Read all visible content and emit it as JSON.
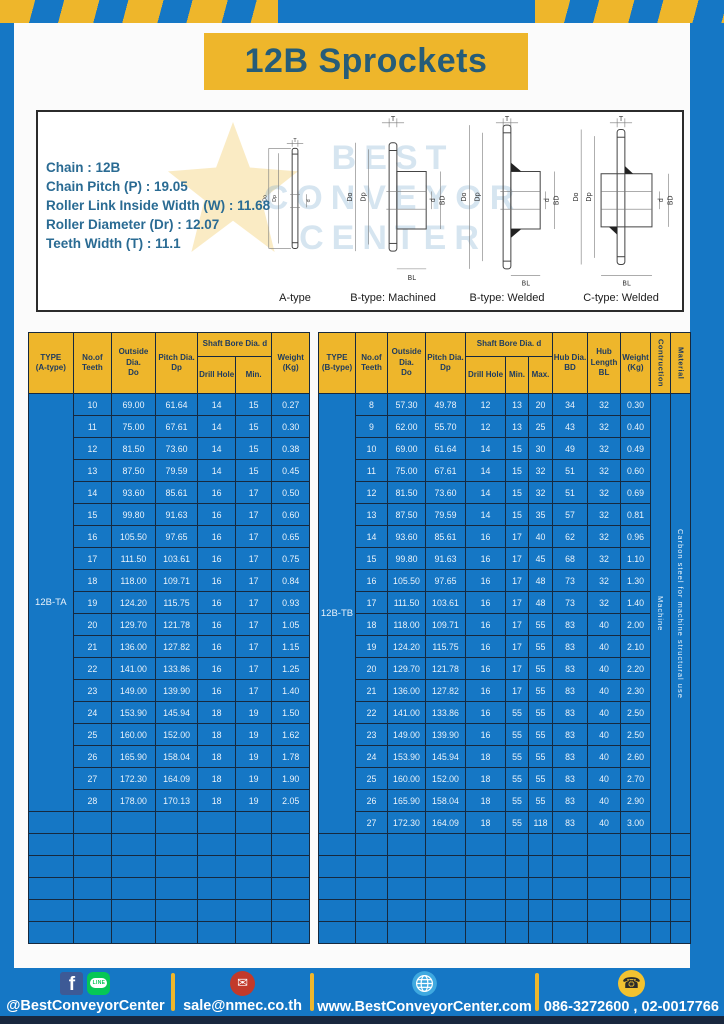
{
  "page_title": "12B Sprockets",
  "colors": {
    "accent_yellow": "#EEB62B",
    "blue": "#1577C5",
    "dark_navy": "#16293F",
    "header_text": "#1D3A5F",
    "title_text": "#265C78",
    "spec_text": "#2A6B93"
  },
  "info": {
    "specs": [
      "Chain : 12B",
      "Chain Pitch (P) : 19.05",
      "Roller Link Inside Width (W) : 11.68",
      "Roller Diameter (Dr) : 12.07",
      "Teeth Width (T) : 11.1"
    ],
    "watermark": [
      "BEST",
      "CONVEYOR",
      "CENTER"
    ],
    "drawings": [
      {
        "id": "a-type",
        "caption": "A-type",
        "dims": {
          "T": "T",
          "Do": "Do",
          "Dp": "Dp",
          "d": "d"
        }
      },
      {
        "id": "b-type-machined",
        "caption": "B-type: Machined",
        "dims": {
          "T": "T",
          "Do": "Do",
          "Dp": "Dp",
          "d": "d",
          "BD": "BD",
          "BL": "BL"
        }
      },
      {
        "id": "b-type-welded",
        "caption": "B-type: Welded",
        "dims": {
          "T": "T",
          "Do": "Do",
          "Dp": "Dp",
          "d": "d",
          "BD": "BD",
          "BL": "BL"
        }
      },
      {
        "id": "c-type-welded",
        "caption": "C-type: Welded",
        "dims": {
          "T": "T",
          "Do": "Do",
          "Dp": "Dp",
          "d": "d",
          "BD": "BD",
          "BL": "BL"
        }
      }
    ]
  },
  "tables": {
    "left": {
      "type": "12B-TA",
      "headers": {
        "type_line1": "TYPE",
        "type_line2": "(A-type)",
        "teeth_line1": "No.of",
        "teeth_line2": "Teeth",
        "outside_line1": "Outside",
        "outside_line2": "Dia.",
        "outside_line3": "Do",
        "pitch_line1": "Pitch Dia.",
        "pitch_line2": "Dp",
        "shaft_bore": "Shaft Bore Dia. d",
        "drill": "Drill Hole",
        "min": "Min.",
        "weight_line1": "Weight",
        "weight_line2": "(Kg)"
      },
      "rows": [
        [
          "10",
          "69.00",
          "61.64",
          "14",
          "15",
          "0.27"
        ],
        [
          "11",
          "75.00",
          "67.61",
          "14",
          "15",
          "0.30"
        ],
        [
          "12",
          "81.50",
          "73.60",
          "14",
          "15",
          "0.38"
        ],
        [
          "13",
          "87.50",
          "79.59",
          "14",
          "15",
          "0.45"
        ],
        [
          "14",
          "93.60",
          "85.61",
          "16",
          "17",
          "0.50"
        ],
        [
          "15",
          "99.80",
          "91.63",
          "16",
          "17",
          "0.60"
        ],
        [
          "16",
          "105.50",
          "97.65",
          "16",
          "17",
          "0.65"
        ],
        [
          "17",
          "111.50",
          "103.61",
          "16",
          "17",
          "0.75"
        ],
        [
          "18",
          "118.00",
          "109.71",
          "16",
          "17",
          "0.84"
        ],
        [
          "19",
          "124.20",
          "115.75",
          "16",
          "17",
          "0.93"
        ],
        [
          "20",
          "129.70",
          "121.78",
          "16",
          "17",
          "1.05"
        ],
        [
          "21",
          "136.00",
          "127.82",
          "16",
          "17",
          "1.15"
        ],
        [
          "22",
          "141.00",
          "133.86",
          "16",
          "17",
          "1.25"
        ],
        [
          "23",
          "149.00",
          "139.90",
          "16",
          "17",
          "1.40"
        ],
        [
          "24",
          "153.90",
          "145.94",
          "18",
          "19",
          "1.50"
        ],
        [
          "25",
          "160.00",
          "152.00",
          "18",
          "19",
          "1.62"
        ],
        [
          "26",
          "165.90",
          "158.04",
          "18",
          "19",
          "1.78"
        ],
        [
          "27",
          "172.30",
          "164.09",
          "18",
          "19",
          "1.90"
        ],
        [
          "28",
          "178.00",
          "170.13",
          "18",
          "19",
          "2.05"
        ]
      ],
      "empty_rows": 6
    },
    "right": {
      "type": "12B-TB",
      "headers": {
        "type_line1": "TYPE",
        "type_line2": "(B-type)",
        "teeth_line1": "No.of",
        "teeth_line2": "Teeth",
        "outside_line1": "Outside",
        "outside_line2": "Dia.",
        "outside_line3": "Do",
        "pitch_line1": "Pitch Dia.",
        "pitch_line2": "Dp",
        "shaft_bore": "Shaft Bore Dia. d",
        "drill": "Drill Hole",
        "min": "Min.",
        "max": "Max.",
        "hub_dia_line1": "Hub Dia.",
        "hub_dia_line2": "BD",
        "hub_len_line1": "Hub",
        "hub_len_line2": "Length",
        "hub_len_line3": "BL",
        "weight_line1": "Weight",
        "weight_line2": "(Kg)",
        "construction": "Contruction",
        "material": "Material"
      },
      "construction_value": "Machine",
      "material_value": "Carbon steel for machine structural use",
      "rows": [
        [
          "8",
          "57.30",
          "49.78",
          "12",
          "13",
          "20",
          "34",
          "32",
          "0.30"
        ],
        [
          "9",
          "62.00",
          "55.70",
          "12",
          "13",
          "25",
          "43",
          "32",
          "0.40"
        ],
        [
          "10",
          "69.00",
          "61.64",
          "14",
          "15",
          "30",
          "49",
          "32",
          "0.49"
        ],
        [
          "11",
          "75.00",
          "67.61",
          "14",
          "15",
          "32",
          "51",
          "32",
          "0.60"
        ],
        [
          "12",
          "81.50",
          "73.60",
          "14",
          "15",
          "32",
          "51",
          "32",
          "0.69"
        ],
        [
          "13",
          "87.50",
          "79.59",
          "14",
          "15",
          "35",
          "57",
          "32",
          "0.81"
        ],
        [
          "14",
          "93.60",
          "85.61",
          "16",
          "17",
          "40",
          "62",
          "32",
          "0.96"
        ],
        [
          "15",
          "99.80",
          "91.63",
          "16",
          "17",
          "45",
          "68",
          "32",
          "1.10"
        ],
        [
          "16",
          "105.50",
          "97.65",
          "16",
          "17",
          "48",
          "73",
          "32",
          "1.30"
        ],
        [
          "17",
          "111.50",
          "103.61",
          "16",
          "17",
          "48",
          "73",
          "32",
          "1.40"
        ],
        [
          "18",
          "118.00",
          "109.71",
          "16",
          "17",
          "55",
          "83",
          "40",
          "2.00"
        ],
        [
          "19",
          "124.20",
          "115.75",
          "16",
          "17",
          "55",
          "83",
          "40",
          "2.10"
        ],
        [
          "20",
          "129.70",
          "121.78",
          "16",
          "17",
          "55",
          "83",
          "40",
          "2.20"
        ],
        [
          "21",
          "136.00",
          "127.82",
          "16",
          "17",
          "55",
          "83",
          "40",
          "2.30"
        ],
        [
          "22",
          "141.00",
          "133.86",
          "16",
          "55",
          "55",
          "83",
          "40",
          "2.50"
        ],
        [
          "23",
          "149.00",
          "139.90",
          "16",
          "55",
          "55",
          "83",
          "40",
          "2.50"
        ],
        [
          "24",
          "153.90",
          "145.94",
          "18",
          "55",
          "55",
          "83",
          "40",
          "2.60"
        ],
        [
          "25",
          "160.00",
          "152.00",
          "18",
          "55",
          "55",
          "83",
          "40",
          "2.70"
        ],
        [
          "26",
          "165.90",
          "158.04",
          "18",
          "55",
          "55",
          "83",
          "40",
          "2.90"
        ],
        [
          "27",
          "172.30",
          "164.09",
          "18",
          "55",
          "118",
          "83",
          "40",
          "3.00"
        ]
      ],
      "empty_rows": 5
    }
  },
  "footer": {
    "social_handle": "@BestConveyorCenter",
    "email": "sale@nmec.co.th",
    "website": "www.BestConveyorCenter.com",
    "phone": "086-3272600 , 02-0017766"
  }
}
